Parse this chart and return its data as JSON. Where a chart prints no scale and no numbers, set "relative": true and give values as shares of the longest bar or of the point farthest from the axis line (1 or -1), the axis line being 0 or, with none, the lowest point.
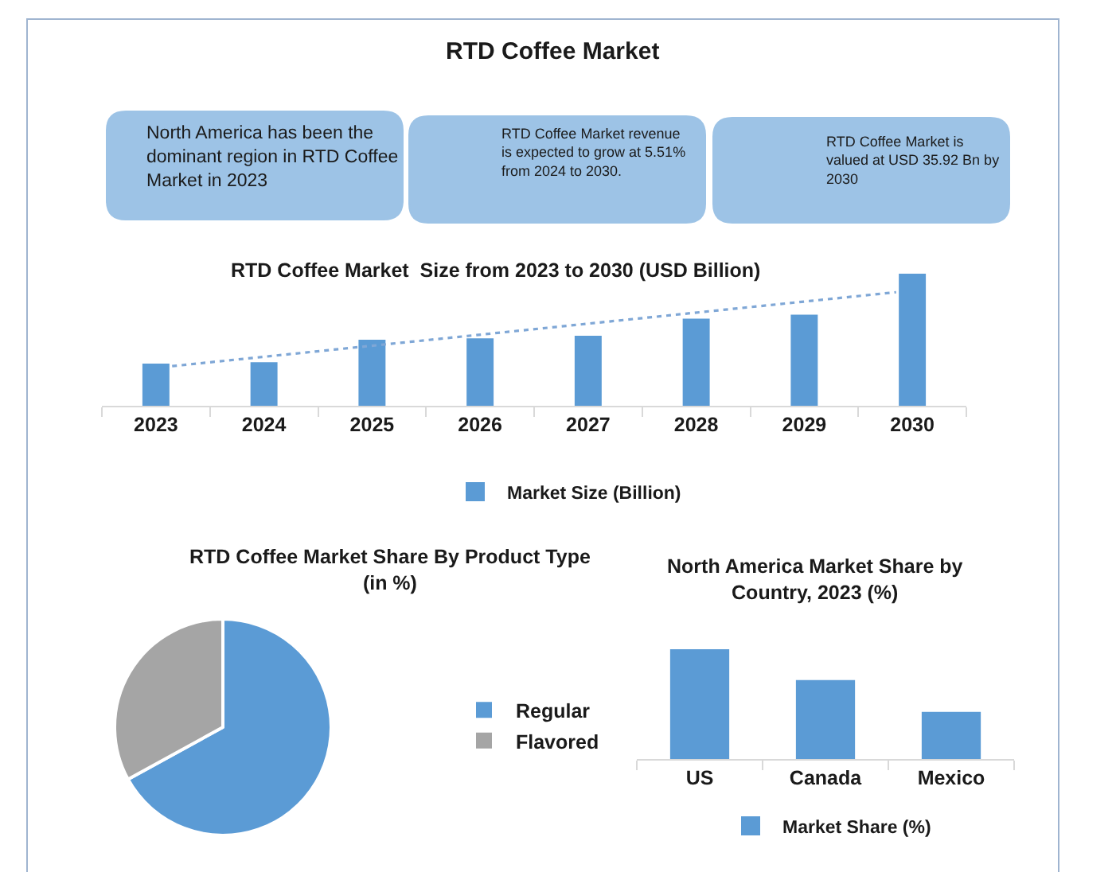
{
  "chart_data": [
    {
      "type": "other",
      "title": "RTD Coffee Market",
      "annotations": [
        "North America has been the\ndominant region in RTD Coffee\nMarket in 2023",
        "RTD Coffee Market revenue\nis expected to grow at 5.51%\nfrom 2024 to 2030.",
        "RTD Coffee Market is\nvalued at USD 35.92 Bn by\n2030"
      ]
    },
    {
      "type": "bar",
      "title": "RTD Coffee Market  Size from 2023 to 2030 (USD Billion)",
      "relative": true,
      "x": [
        2023,
        2024,
        2025,
        2026,
        2027,
        2028,
        2029,
        2030
      ],
      "xlim": [
        2022.5,
        2030.5
      ],
      "xticks": [
        {
          "value": 2022.5,
          "label": null
        },
        2023,
        {
          "value": 2023.5,
          "label": null
        },
        2024,
        {
          "value": 2024.5,
          "label": null
        },
        2025,
        {
          "value": 2025.5,
          "label": null
        },
        2026,
        {
          "value": 2026.5,
          "label": null
        },
        2027,
        {
          "value": 2027.5,
          "label": null
        },
        2028,
        {
          "value": 2028.5,
          "label": null
        },
        2029,
        {
          "value": 2029.5,
          "label": null
        },
        2030,
        {
          "value": 2030.5,
          "label": null
        }
      ],
      "series": [
        {
          "name": "Market Size (Billion)",
          "color": "#5b9bd5",
          "values": [
            0.32,
            0.33,
            0.5,
            0.51,
            0.53,
            0.66,
            0.69,
            1
          ]
        },
        {
          "type": "line",
          "x": [
            2023.15,
            2029.85
          ],
          "values": [
            0.3,
            0.86
          ],
          "color": "#7fa7d6",
          "line_style": "dotted"
        }
      ],
      "legend": "bottom"
    },
    {
      "type": "pie",
      "title": "RTD Coffee Market Share By Product Type\n(in %)",
      "categories": [
        "Regular",
        "Flavored"
      ],
      "values": [
        67,
        33
      ],
      "colors": [
        "#5b9bd5",
        "#a5a5a5"
      ],
      "legend": "right"
    },
    {
      "type": "bar",
      "title": "North America Market Share by\nCountry, 2023 (%)",
      "relative": true,
      "categories": [
        "US",
        "Canada",
        "Mexico"
      ],
      "series": [
        {
          "name": "Market Share (%)",
          "color": "#5b9bd5",
          "values": [
            1,
            0.72,
            0.43
          ]
        }
      ],
      "legend": "bottom"
    }
  ]
}
